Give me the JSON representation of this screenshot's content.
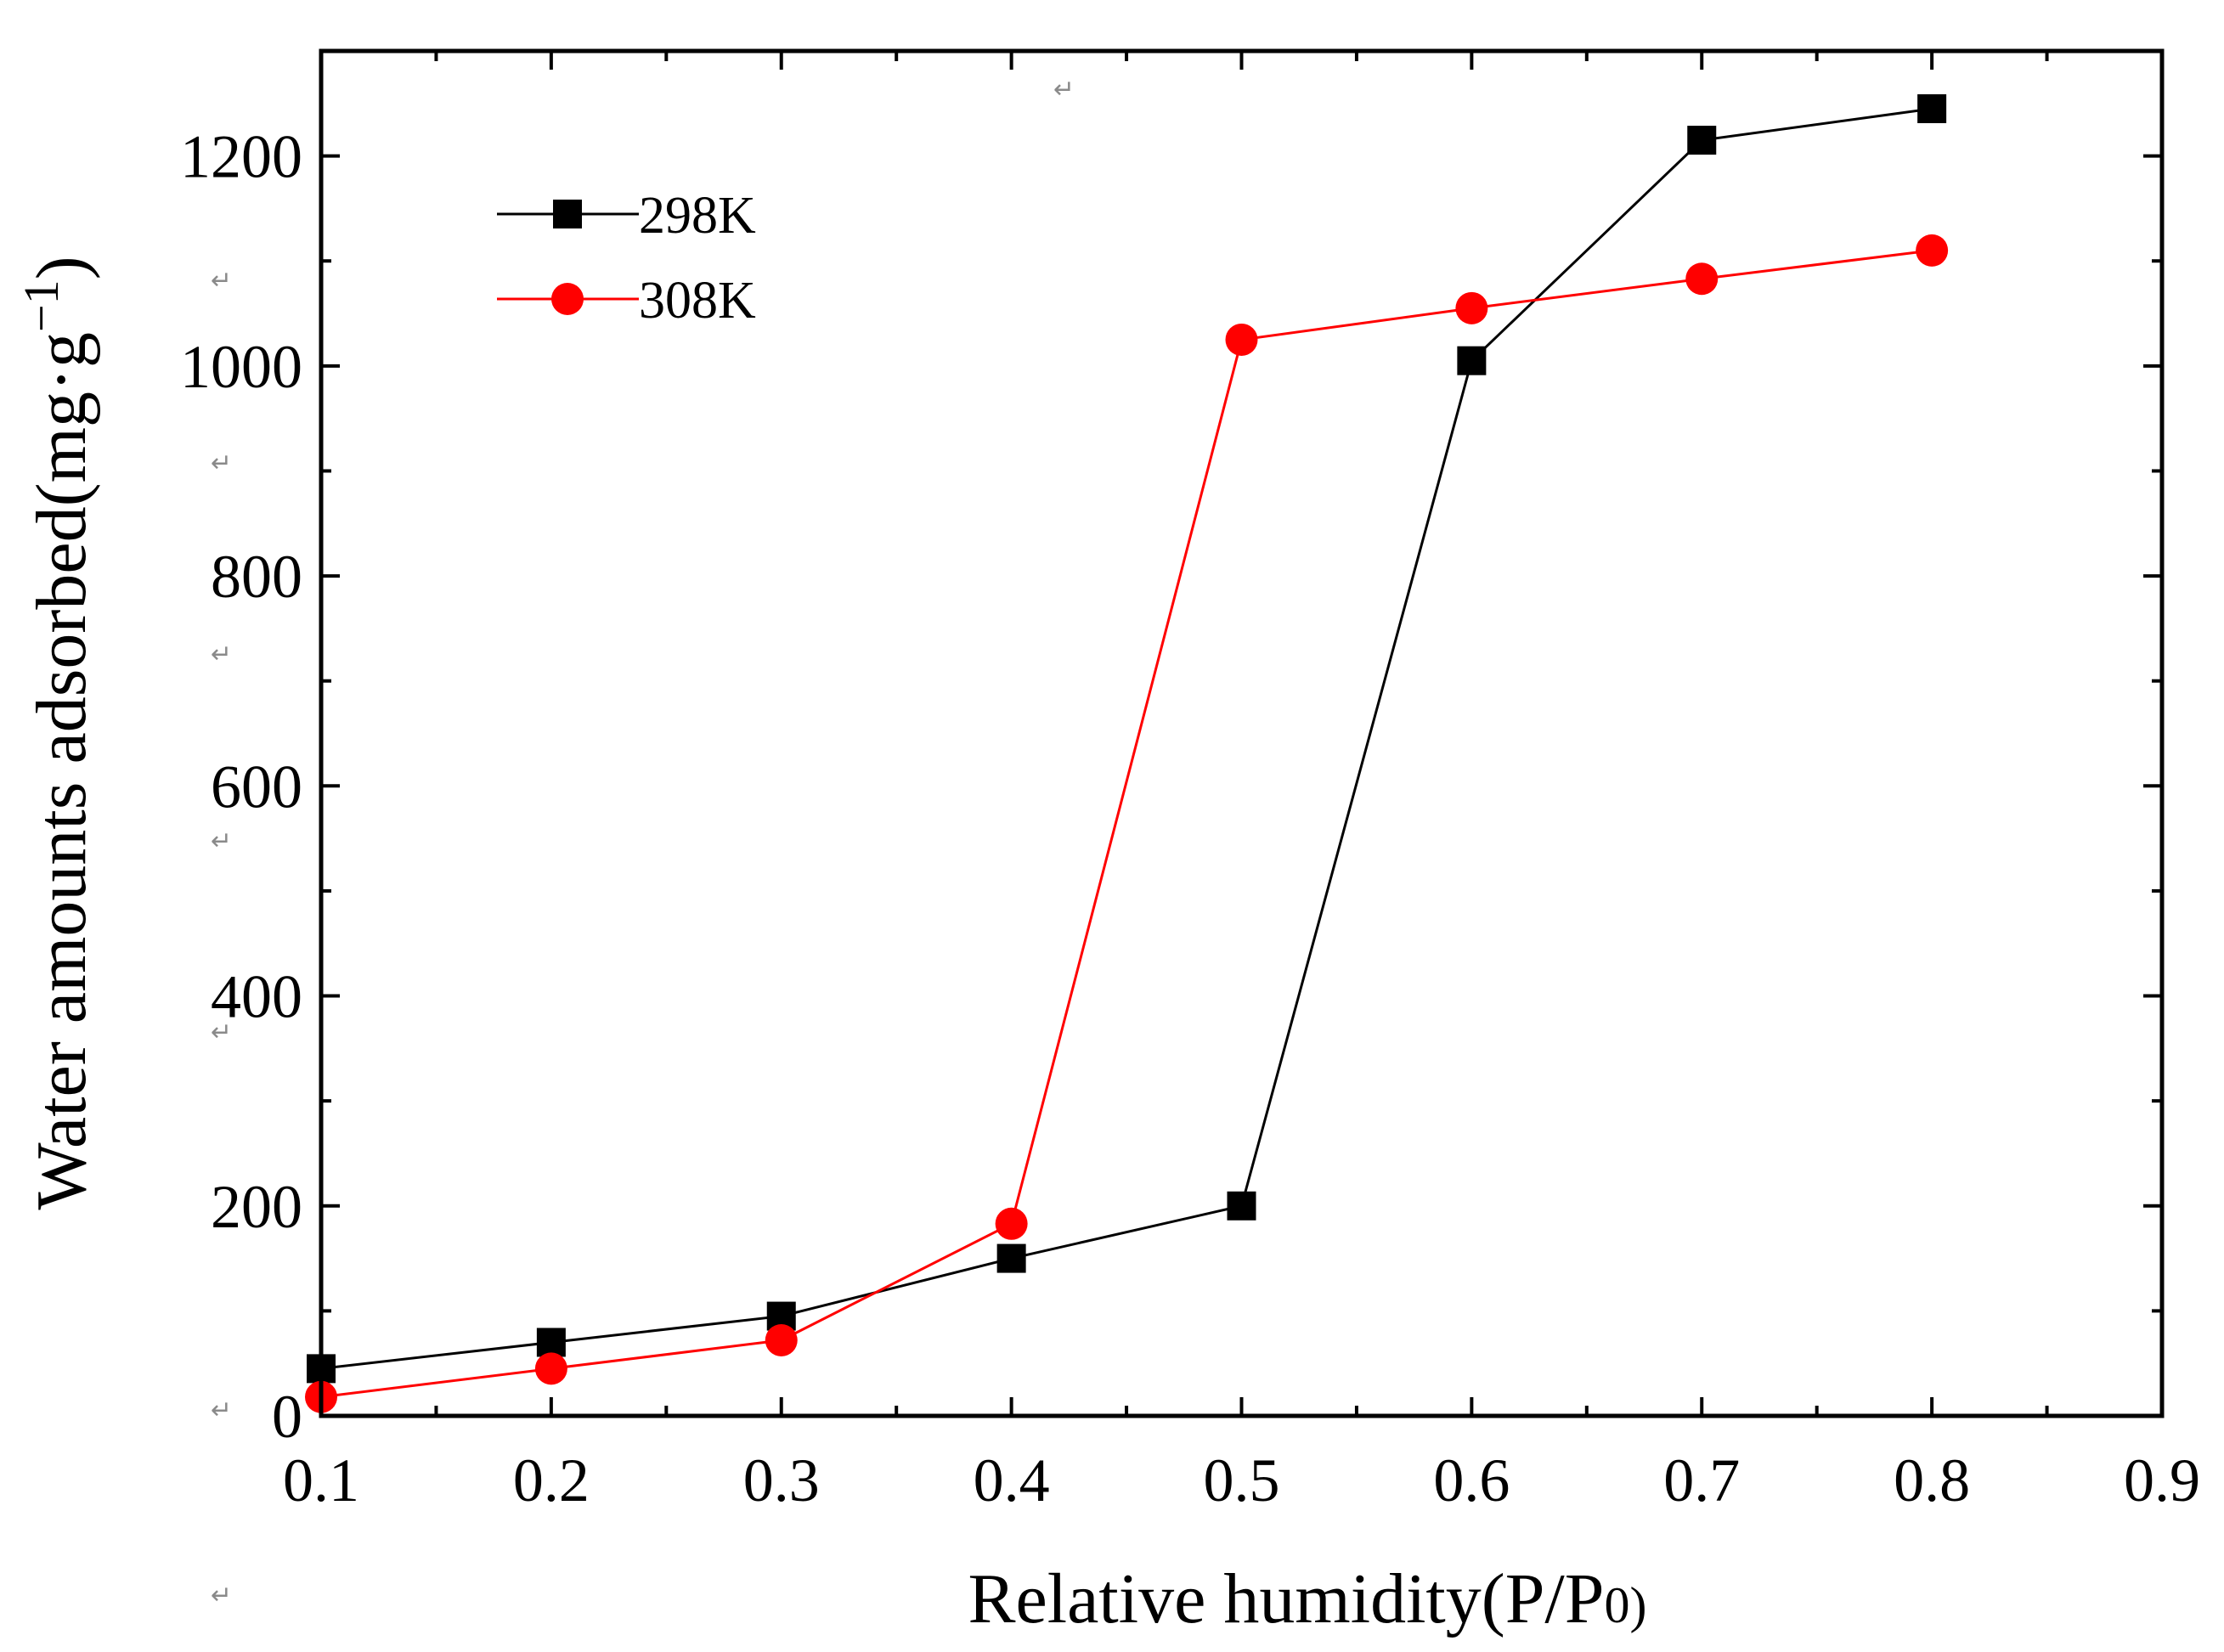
{
  "chart_data": {
    "type": "line",
    "title": "",
    "xlabel": "Relative humidity(P/P0)",
    "xlabel_parts": {
      "main": "Relative humidity(P/P",
      "sub": "0",
      "close": ")"
    },
    "ylabel": "Water amounts adsorbed(mg·g⁻¹)",
    "ylabel_parts": {
      "main": "Water amounts adsorbed(mg·g",
      "sup": "−1",
      "close": ")"
    },
    "xlim": [
      0.1,
      0.9
    ],
    "ylim": [
      0,
      1300
    ],
    "x_ticks": [
      0.1,
      0.2,
      0.3,
      0.4,
      0.5,
      0.6,
      0.7,
      0.8,
      0.9
    ],
    "x_tick_labels": [
      "0.1",
      "0.2",
      "0.3",
      "0.4",
      "0.5",
      "0.6",
      "0.7",
      "0.8",
      "0.9"
    ],
    "y_ticks": [
      0,
      200,
      400,
      600,
      800,
      1000,
      1200
    ],
    "y_tick_labels": [
      "0",
      "200",
      "400",
      "600",
      "800",
      "1000",
      "1200"
    ],
    "grid": false,
    "legend_position": "top-left",
    "series": [
      {
        "name": "298K",
        "color": "#000000",
        "marker": "square",
        "x": [
          0.1,
          0.2,
          0.3,
          0.4,
          0.5,
          0.6,
          0.7,
          0.8
        ],
        "y": [
          45,
          70,
          95,
          150,
          200,
          1005,
          1215,
          1245
        ]
      },
      {
        "name": "308K",
        "color": "#ff0000",
        "marker": "circle",
        "x": [
          0.1,
          0.2,
          0.3,
          0.4,
          0.5,
          0.6,
          0.7,
          0.8
        ],
        "y": [
          18,
          45,
          72,
          183,
          1025,
          1055,
          1083,
          1110
        ]
      }
    ]
  },
  "document_marks": {
    "glyph": "↵"
  }
}
